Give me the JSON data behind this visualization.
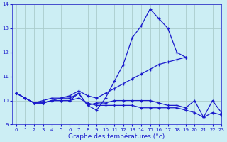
{
  "title": "Graphe des températures (°c)",
  "background_color": "#cceef4",
  "grid_color": "#aacccc",
  "line_color": "#1a1acc",
  "xlim": [
    -0.5,
    23
  ],
  "ylim": [
    9,
    14
  ],
  "yticks": [
    9,
    10,
    11,
    12,
    13,
    14
  ],
  "xticks": [
    0,
    1,
    2,
    3,
    4,
    5,
    6,
    7,
    8,
    9,
    10,
    11,
    12,
    13,
    14,
    15,
    16,
    17,
    18,
    19,
    20,
    21,
    22,
    23
  ],
  "lines": [
    {
      "x": [
        0,
        1,
        2,
        3,
        4,
        5,
        6,
        7,
        8,
        9,
        10,
        11,
        12,
        13,
        14,
        15,
        16,
        17,
        18,
        19,
        20,
        21,
        22,
        23
      ],
      "y": [
        10.3,
        10.1,
        9.9,
        9.9,
        10.0,
        10.1,
        10.1,
        10.3,
        9.8,
        9.6,
        10.1,
        10.8,
        11.5,
        12.6,
        13.1,
        13.8,
        13.4,
        13.0,
        12.0,
        11.8,
        null,
        null,
        null,
        null
      ]
    },
    {
      "x": [
        0,
        1,
        2,
        3,
        4,
        5,
        6,
        7,
        8,
        9,
        10,
        11,
        12,
        13,
        14,
        15,
        16,
        17,
        18,
        19,
        20,
        21,
        22,
        23
      ],
      "y": [
        10.3,
        10.1,
        9.9,
        10.0,
        10.1,
        10.1,
        10.2,
        10.4,
        10.2,
        10.1,
        10.3,
        10.5,
        10.7,
        10.9,
        11.1,
        11.3,
        11.5,
        11.6,
        11.7,
        11.8,
        null,
        null,
        null,
        null
      ]
    },
    {
      "x": [
        0,
        1,
        2,
        3,
        4,
        5,
        6,
        7,
        8,
        9,
        10,
        11,
        12,
        13,
        14,
        15,
        16,
        17,
        18,
        19,
        20,
        21,
        22,
        23
      ],
      "y": [
        10.3,
        10.1,
        9.9,
        9.9,
        10.0,
        10.0,
        10.0,
        10.3,
        9.8,
        9.9,
        9.9,
        10.0,
        10.0,
        10.0,
        10.0,
        10.0,
        9.9,
        9.8,
        9.8,
        9.7,
        10.0,
        9.3,
        10.0,
        9.5
      ]
    },
    {
      "x": [
        0,
        1,
        2,
        3,
        4,
        5,
        6,
        7,
        8,
        9,
        10,
        11,
        12,
        13,
        14,
        15,
        16,
        17,
        18,
        19,
        20,
        21,
        22,
        23
      ],
      "y": [
        10.3,
        10.1,
        9.9,
        9.9,
        10.0,
        10.0,
        10.0,
        10.1,
        9.9,
        9.8,
        9.8,
        9.8,
        9.8,
        9.8,
        9.7,
        9.7,
        9.7,
        9.7,
        9.7,
        9.6,
        9.5,
        9.3,
        9.5,
        9.4
      ]
    }
  ]
}
